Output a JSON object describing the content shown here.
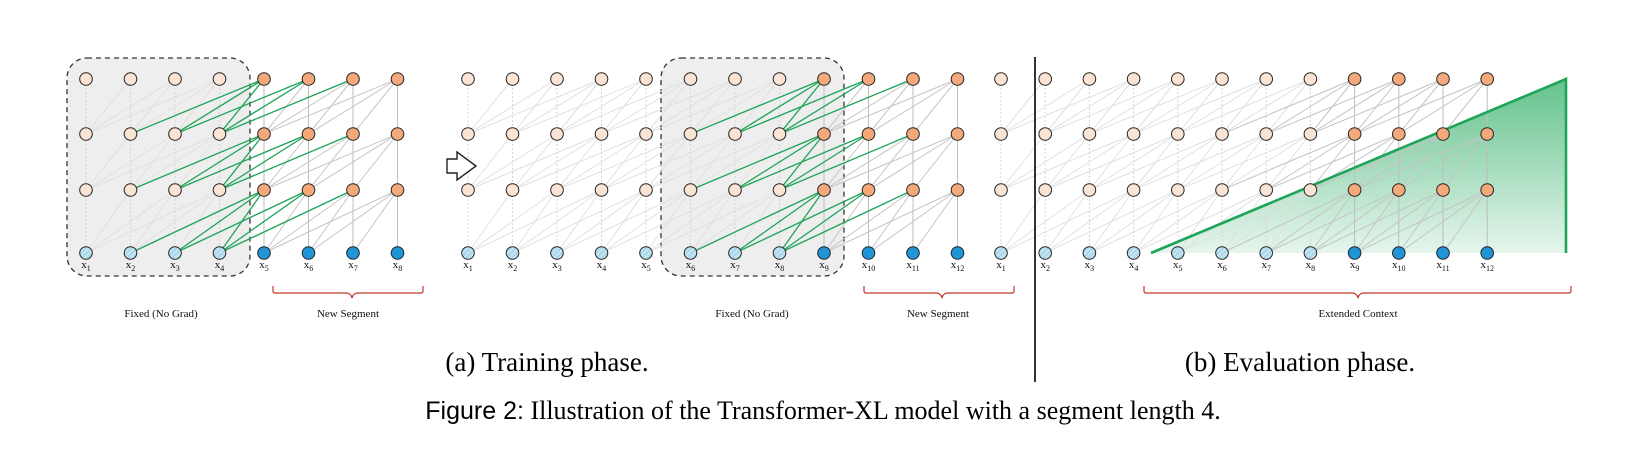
{
  "colors": {
    "hidden_old": "#fbe4d4",
    "hidden_new": "#f4a97a",
    "input_old": "#bfe3f3",
    "input_new": "#1f94d6",
    "edge_gray": "#c8c8c8",
    "edge_green": "#1fa55a",
    "fixed_box_fill": "#eeeeee",
    "bracket": "#c0392b"
  },
  "panels": {
    "training": {
      "left": {
        "tokens": [
          "1",
          "2",
          "3",
          "4",
          "5",
          "6",
          "7",
          "8"
        ],
        "new_from": 4,
        "fixed_label": "Fixed (No Grad)",
        "new_label": "New Segment"
      },
      "right": {
        "tokens": [
          "1",
          "2",
          "3",
          "4",
          "5",
          "6",
          "7",
          "8",
          "9",
          "10",
          "11",
          "12"
        ],
        "new_from": 8,
        "fixed_label": "Fixed (No Grad)",
        "new_label": "New Segment"
      },
      "caption": "(a) Training phase."
    },
    "evaluation": {
      "tokens": [
        "1",
        "2",
        "3",
        "4",
        "5",
        "6",
        "7",
        "8",
        "9",
        "10",
        "11",
        "12"
      ],
      "new_from": 8,
      "context_label": "Extended Context",
      "caption": "(b) Evaluation phase."
    }
  },
  "figure_caption": {
    "lead": "Figure 2:",
    "text": "Illustration of the Transformer-XL model with a segment length 4."
  }
}
